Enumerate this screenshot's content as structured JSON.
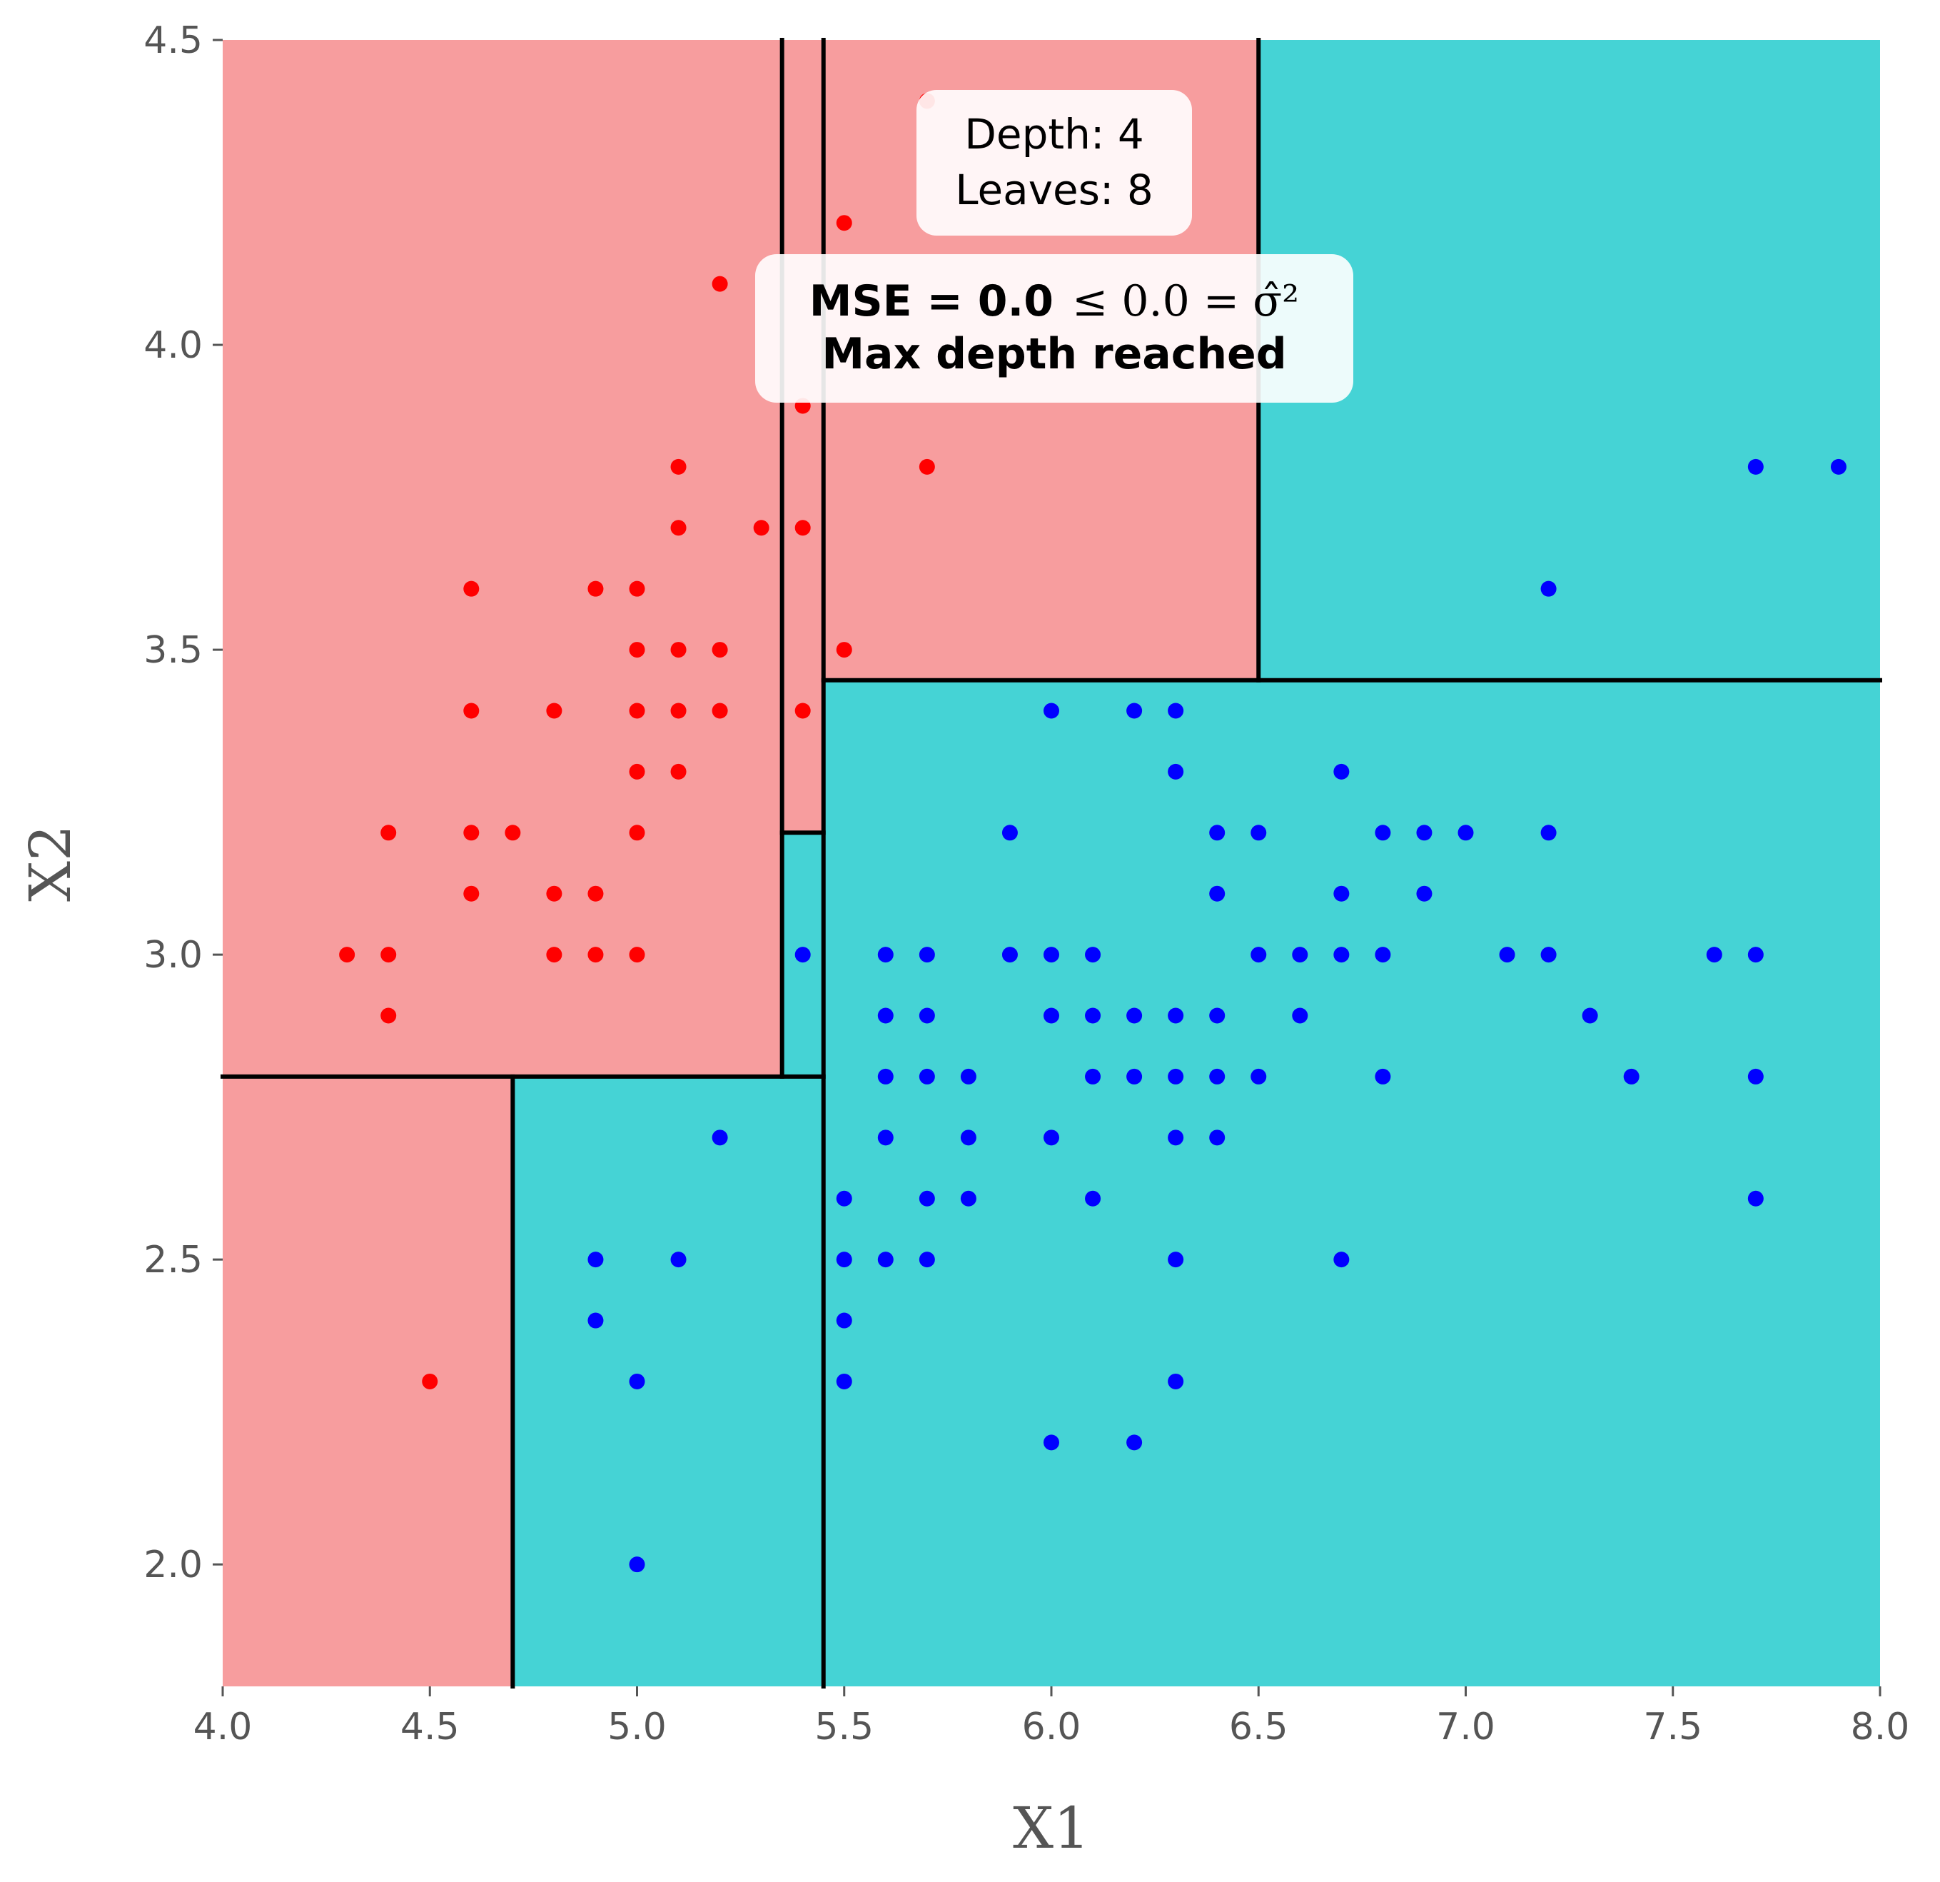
{
  "chart_data": {
    "type": "scatter",
    "xlabel": "X1",
    "ylabel": "X2",
    "xlim": [
      4.0,
      8.0
    ],
    "ylim": [
      1.8,
      4.5
    ],
    "xticks": [
      "4.0",
      "4.5",
      "5.0",
      "5.5",
      "6.0",
      "6.5",
      "7.0",
      "7.5",
      "8.0"
    ],
    "yticks": [
      "2.0",
      "2.5",
      "3.0",
      "3.5",
      "4.0",
      "4.5"
    ],
    "grid": false,
    "colors": {
      "region_red": "#f79d9e",
      "region_cyan": "#45d3d5",
      "points_red": "#ff0000",
      "points_blue": "#0000ff",
      "split_line": "#000000"
    },
    "regions": [
      {
        "x": [
          4.0,
          5.35
        ],
        "y": [
          2.8,
          4.5
        ],
        "class": "red"
      },
      {
        "x": [
          5.35,
          5.45
        ],
        "y": [
          3.2,
          4.5
        ],
        "class": "red"
      },
      {
        "x": [
          5.35,
          5.45
        ],
        "y": [
          2.8,
          3.2
        ],
        "class": "cyan"
      },
      {
        "x": [
          5.45,
          6.5
        ],
        "y": [
          3.45,
          4.5
        ],
        "class": "red"
      },
      {
        "x": [
          6.5,
          8.0
        ],
        "y": [
          3.45,
          4.5
        ],
        "class": "cyan"
      },
      {
        "x": [
          5.45,
          8.0
        ],
        "y": [
          1.8,
          3.45
        ],
        "class": "cyan"
      },
      {
        "x": [
          4.0,
          4.7
        ],
        "y": [
          1.8,
          2.8
        ],
        "class": "red"
      },
      {
        "x": [
          4.7,
          5.45
        ],
        "y": [
          1.8,
          2.8
        ],
        "class": "cyan"
      }
    ],
    "splits": [
      {
        "x1": 5.45,
        "y1": 1.8,
        "x2": 5.45,
        "y2": 4.5
      },
      {
        "x1": 4.0,
        "y1": 2.8,
        "x2": 5.45,
        "y2": 2.8
      },
      {
        "x1": 5.35,
        "y1": 2.8,
        "x2": 5.35,
        "y2": 4.5
      },
      {
        "x1": 5.35,
        "y1": 3.2,
        "x2": 5.45,
        "y2": 3.2
      },
      {
        "x1": 5.45,
        "y1": 3.45,
        "x2": 8.0,
        "y2": 3.45
      },
      {
        "x1": 6.5,
        "y1": 3.45,
        "x2": 6.5,
        "y2": 4.5
      },
      {
        "x1": 4.7,
        "y1": 1.8,
        "x2": 4.7,
        "y2": 2.8
      }
    ],
    "series": [
      {
        "class": "red",
        "points": [
          [
            5.7,
            4.4
          ],
          [
            5.5,
            4.2
          ],
          [
            5.2,
            4.1
          ],
          [
            5.4,
            3.9
          ],
          [
            5.1,
            3.8
          ],
          [
            5.7,
            3.8
          ],
          [
            5.1,
            3.7
          ],
          [
            5.3,
            3.7
          ],
          [
            5.4,
            3.7
          ],
          [
            4.6,
            3.6
          ],
          [
            4.9,
            3.6
          ],
          [
            5.0,
            3.6
          ],
          [
            5.0,
            3.5
          ],
          [
            5.1,
            3.5
          ],
          [
            5.2,
            3.5
          ],
          [
            5.5,
            3.5
          ],
          [
            4.6,
            3.4
          ],
          [
            4.8,
            3.4
          ],
          [
            5.0,
            3.4
          ],
          [
            5.1,
            3.4
          ],
          [
            5.2,
            3.4
          ],
          [
            5.4,
            3.4
          ],
          [
            5.0,
            3.3
          ],
          [
            5.1,
            3.3
          ],
          [
            4.4,
            3.2
          ],
          [
            4.6,
            3.2
          ],
          [
            4.7,
            3.2
          ],
          [
            5.0,
            3.2
          ],
          [
            4.6,
            3.1
          ],
          [
            4.8,
            3.1
          ],
          [
            4.9,
            3.1
          ],
          [
            4.3,
            3.0
          ],
          [
            4.4,
            3.0
          ],
          [
            4.8,
            3.0
          ],
          [
            4.9,
            3.0
          ],
          [
            5.0,
            3.0
          ],
          [
            4.4,
            2.9
          ],
          [
            4.5,
            2.3
          ]
        ]
      },
      {
        "class": "blue",
        "points": [
          [
            7.7,
            3.8
          ],
          [
            7.9,
            3.8
          ],
          [
            7.2,
            3.6
          ],
          [
            6.0,
            3.4
          ],
          [
            6.2,
            3.4
          ],
          [
            6.3,
            3.4
          ],
          [
            6.3,
            3.3
          ],
          [
            6.7,
            3.3
          ],
          [
            5.9,
            3.2
          ],
          [
            6.4,
            3.2
          ],
          [
            6.5,
            3.2
          ],
          [
            6.8,
            3.2
          ],
          [
            6.9,
            3.2
          ],
          [
            7.0,
            3.2
          ],
          [
            7.2,
            3.2
          ],
          [
            6.4,
            3.1
          ],
          [
            6.7,
            3.1
          ],
          [
            6.9,
            3.1
          ],
          [
            5.4,
            3.0
          ],
          [
            5.6,
            3.0
          ],
          [
            5.7,
            3.0
          ],
          [
            5.9,
            3.0
          ],
          [
            6.0,
            3.0
          ],
          [
            6.1,
            3.0
          ],
          [
            6.5,
            3.0
          ],
          [
            6.6,
            3.0
          ],
          [
            6.7,
            3.0
          ],
          [
            6.8,
            3.0
          ],
          [
            7.1,
            3.0
          ],
          [
            7.2,
            3.0
          ],
          [
            7.6,
            3.0
          ],
          [
            7.7,
            3.0
          ],
          [
            5.6,
            2.9
          ],
          [
            5.7,
            2.9
          ],
          [
            6.0,
            2.9
          ],
          [
            6.1,
            2.9
          ],
          [
            6.2,
            2.9
          ],
          [
            6.3,
            2.9
          ],
          [
            6.4,
            2.9
          ],
          [
            6.6,
            2.9
          ],
          [
            7.3,
            2.9
          ],
          [
            5.6,
            2.8
          ],
          [
            5.7,
            2.8
          ],
          [
            5.8,
            2.8
          ],
          [
            6.1,
            2.8
          ],
          [
            6.2,
            2.8
          ],
          [
            6.3,
            2.8
          ],
          [
            6.4,
            2.8
          ],
          [
            6.5,
            2.8
          ],
          [
            6.8,
            2.8
          ],
          [
            7.4,
            2.8
          ],
          [
            7.7,
            2.8
          ],
          [
            5.2,
            2.7
          ],
          [
            5.6,
            2.7
          ],
          [
            5.8,
            2.7
          ],
          [
            6.0,
            2.7
          ],
          [
            6.3,
            2.7
          ],
          [
            6.4,
            2.7
          ],
          [
            5.5,
            2.6
          ],
          [
            5.7,
            2.6
          ],
          [
            5.8,
            2.6
          ],
          [
            6.1,
            2.6
          ],
          [
            7.7,
            2.6
          ],
          [
            4.9,
            2.5
          ],
          [
            5.1,
            2.5
          ],
          [
            5.5,
            2.5
          ],
          [
            5.6,
            2.5
          ],
          [
            5.7,
            2.5
          ],
          [
            6.3,
            2.5
          ],
          [
            6.7,
            2.5
          ],
          [
            4.9,
            2.4
          ],
          [
            5.5,
            2.4
          ],
          [
            5.0,
            2.3
          ],
          [
            5.5,
            2.3
          ],
          [
            6.3,
            2.3
          ],
          [
            6.0,
            2.2
          ],
          [
            6.2,
            2.2
          ],
          [
            5.0,
            2.0
          ]
        ]
      }
    ],
    "annotations": {
      "depth_line": "Depth: 4",
      "leaves_line": "Leaves: 8",
      "mse_prefix": "MSE = 0.0",
      "mse_math": "≤  0.0 = σ̂²",
      "status": "Max depth reached"
    }
  }
}
